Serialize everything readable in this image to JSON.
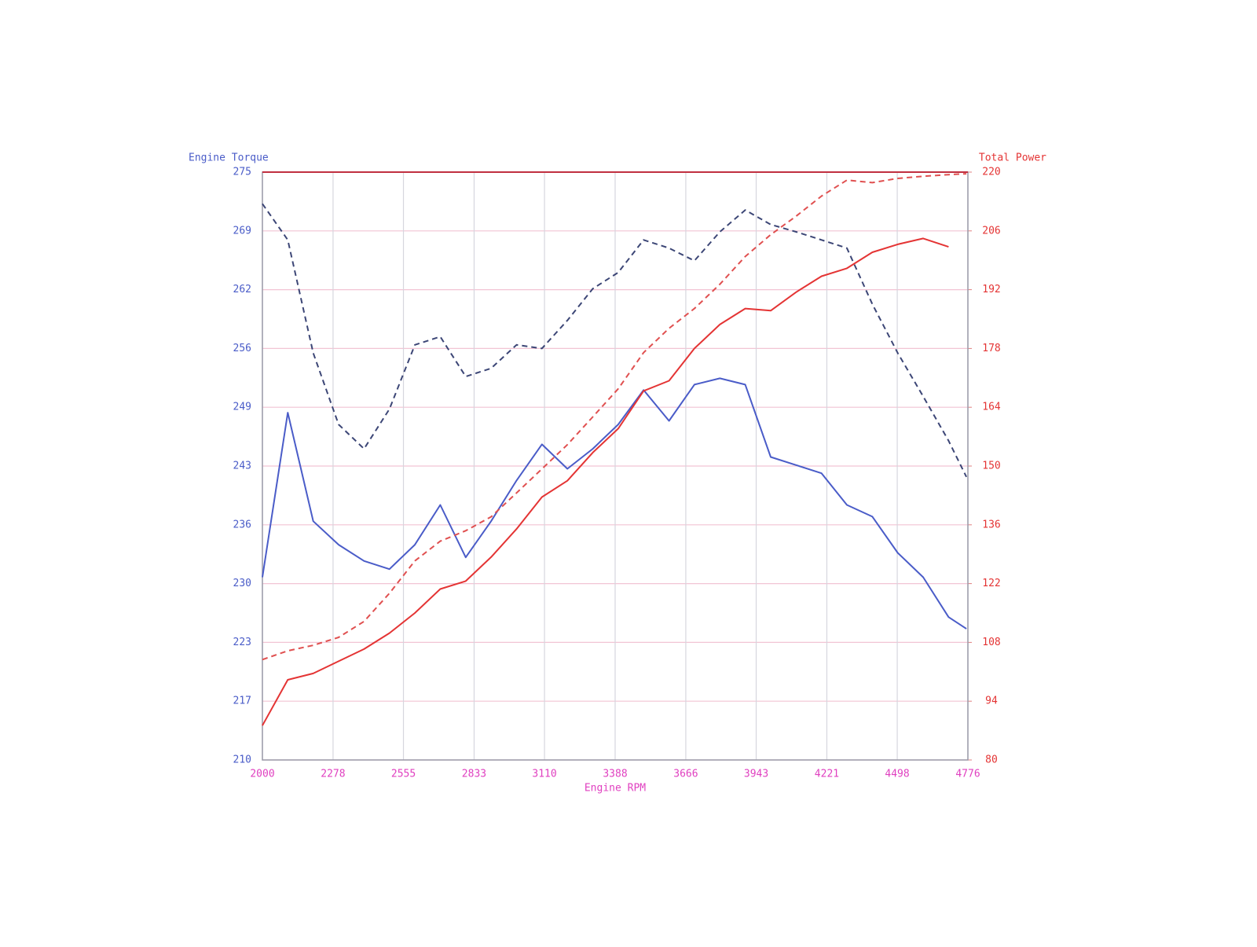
{
  "chart_data": {
    "type": "line",
    "y_label": "Engine Torque",
    "y2_label": "Total Power",
    "x_label": "Engine RPM",
    "x": [
      2000,
      2100,
      2200,
      2300,
      2400,
      2500,
      2600,
      2700,
      2800,
      2900,
      3000,
      3100,
      3200,
      3300,
      3400,
      3500,
      3600,
      3700,
      3800,
      3900,
      4000,
      4100,
      4200,
      4300,
      4400,
      4500,
      4600,
      4700,
      4770
    ],
    "xlim": [
      2000,
      4776
    ],
    "xticks": [
      2000,
      2278,
      2555,
      2833,
      3110,
      3388,
      3666,
      3943,
      4221,
      4498,
      4776
    ],
    "ylim": [
      210,
      275
    ],
    "yticks": [
      210,
      {
        "value": 216.5,
        "label": "217"
      },
      223,
      {
        "value": 229.5,
        "label": "230"
      },
      236,
      {
        "value": 242.5,
        "label": "243"
      },
      249,
      {
        "value": 255.5,
        "label": "256"
      },
      262,
      {
        "value": 268.5,
        "label": "269"
      },
      275
    ],
    "y2lim": [
      80,
      220
    ],
    "y2ticks": [
      80,
      94,
      108,
      122,
      136,
      150,
      164,
      178,
      192,
      206,
      220
    ],
    "grid": true,
    "series": [
      {
        "color": "#3c4676",
        "linestyle": "dashed",
        "values": [
          271.5,
          267.5,
          255.0,
          247.1,
          244.4,
          248.8,
          255.9,
          256.8,
          252.4,
          253.3,
          255.9,
          255.5,
          258.6,
          262.1,
          263.9,
          267.5,
          266.6,
          265.2,
          268.4,
          270.8,
          269.2,
          268.4,
          267.5,
          266.6,
          260.4,
          255.0,
          250.2,
          245.3,
          241.3
        ]
      },
      {
        "color": "#4a5cc8",
        "linestyle": "solid",
        "values": [
          230.2,
          248.4,
          236.4,
          233.8,
          232.0,
          231.1,
          233.8,
          238.2,
          232.4,
          236.4,
          240.9,
          244.9,
          242.2,
          244.4,
          247.1,
          250.9,
          247.5,
          251.5,
          252.2,
          251.5,
          243.5,
          242.6,
          241.7,
          238.2,
          236.9,
          232.9,
          230.2,
          225.8,
          224.5
        ]
      },
      {
        "color": "#e43434",
        "linestyle": "solid",
        "axis": "y2",
        "values": [
          88.2,
          99.1,
          100.6,
          103.5,
          106.4,
          110.2,
          115.0,
          120.7,
          122.6,
          128.3,
          135.0,
          142.6,
          146.5,
          153.2,
          158.9,
          167.9,
          170.3,
          178.0,
          183.7,
          187.5,
          187.0,
          191.4,
          195.2,
          197.1,
          200.9,
          202.8,
          204.2,
          202.2,
          null
        ]
      },
      {
        "color": "#e05050",
        "linestyle": "dashed",
        "axis": "y2",
        "values": [
          103.9,
          106.0,
          107.3,
          109.2,
          113.0,
          119.7,
          127.4,
          132.1,
          134.6,
          137.9,
          143.6,
          149.3,
          155.1,
          161.7,
          168.4,
          177.0,
          182.8,
          187.5,
          193.3,
          199.9,
          205.1,
          209.5,
          214.3,
          218.1,
          217.5,
          218.5,
          219.0,
          219.4,
          219.6
        ]
      }
    ]
  }
}
